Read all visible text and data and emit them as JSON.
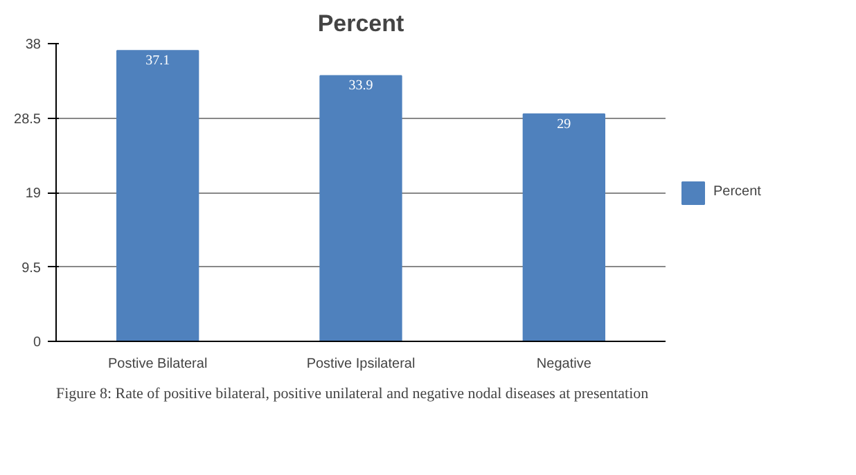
{
  "chart_data": {
    "type": "bar",
    "title": "Percent",
    "categories": [
      "Postive Bilateral",
      "Postive Ipsilateral",
      "Negative"
    ],
    "series": [
      {
        "name": "Percent",
        "color": "#4f81bd",
        "values": [
          37.1,
          33.9,
          29
        ]
      }
    ],
    "ylim": [
      0,
      38
    ],
    "yticks": [
      0,
      9.5,
      19,
      28.5,
      38
    ],
    "grid": "y",
    "legend": "right",
    "data_labels": true,
    "annotations": [
      "Figure 8: Rate of positive bilateral, positive unilateral and negative nodal diseases at presentation"
    ]
  }
}
